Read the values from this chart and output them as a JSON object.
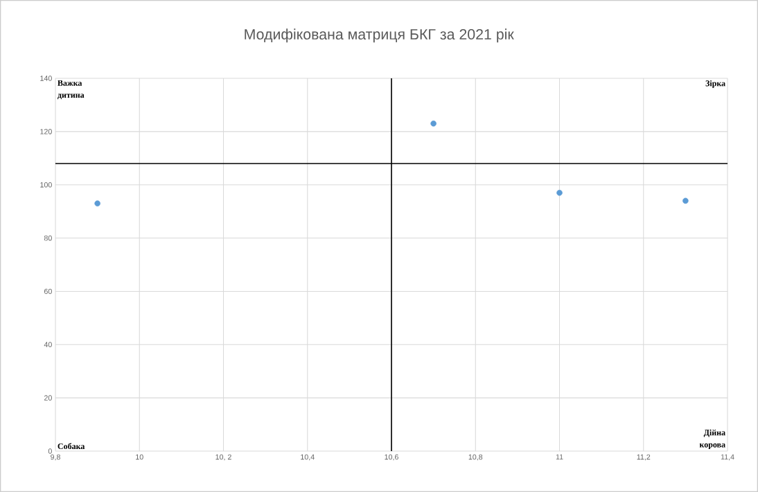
{
  "chart_data": {
    "type": "scatter",
    "title": "Модифікована матриця БКГ за 2021 рік",
    "x": [
      9.9,
      10.7,
      11.0,
      11.3
    ],
    "values": [
      93,
      123,
      97,
      94
    ],
    "color": "#5b9bd5",
    "marker": "circle",
    "xlim": [
      9.8,
      11.4
    ],
    "ylim": [
      0,
      140
    ],
    "xticks": [
      {
        "value": 9.8,
        "label": "9,8"
      },
      10,
      {
        "value": 10.2,
        "label": "10, 2"
      },
      {
        "value": 10.4,
        "label": "10,4"
      },
      {
        "value": 10.6,
        "label": "10,6"
      },
      {
        "value": 10.8,
        "label": "10,8"
      },
      11,
      {
        "value": 11.2,
        "label": "11,2"
      },
      {
        "value": 11.4,
        "label": "11,4"
      }
    ],
    "yticks": [
      0,
      20,
      40,
      60,
      80,
      100,
      120,
      140
    ],
    "grid": true,
    "ref_lines": [
      {
        "axis": "x",
        "value": 10.6,
        "color": "#000000"
      },
      {
        "axis": "y",
        "value": 108,
        "color": "#000000"
      }
    ],
    "annotations": [
      "Важка дитина",
      "Зірка",
      "Собака",
      "Дійна корова"
    ]
  }
}
